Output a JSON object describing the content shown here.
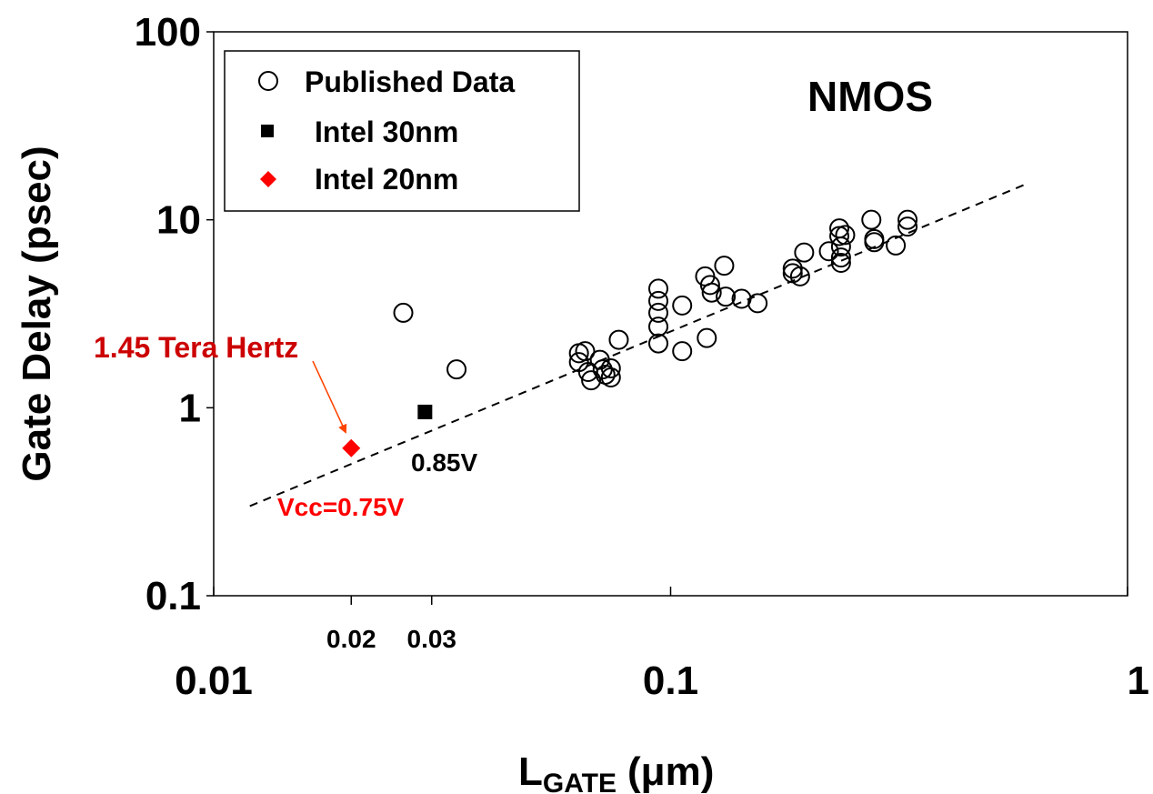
{
  "chart_data": {
    "type": "scatter",
    "title": "",
    "xlabel_main": "L",
    "xlabel_sub": "GATE",
    "xlabel_unit": "(μm)",
    "ylabel": "Gate Delay (psec)",
    "x_scale": "log",
    "y_scale": "log",
    "xlim": [
      0.01,
      1
    ],
    "ylim": [
      0.1,
      100
    ],
    "x_ticks": [
      "0.01",
      "0.1",
      "1"
    ],
    "x_minor_labels": [
      "0.02",
      "0.03"
    ],
    "y_ticks": [
      "0.1",
      "1",
      "10",
      "100"
    ],
    "grid": false,
    "legend_position": "top-left",
    "legend": [
      {
        "label": "Published Data",
        "marker": "open-circle",
        "color": "#000000"
      },
      {
        "label": "Intel 30nm",
        "marker": "filled-square",
        "color": "#000000"
      },
      {
        "label": "Intel 20nm",
        "marker": "filled-diamond",
        "color": "#ff0000"
      }
    ],
    "series": [
      {
        "name": "Published Data",
        "marker": "open-circle",
        "color": "#000000",
        "points": [
          [
            0.026,
            3.2
          ],
          [
            0.034,
            1.6
          ],
          [
            0.063,
            1.95
          ],
          [
            0.065,
            2.0
          ],
          [
            0.063,
            1.75
          ],
          [
            0.066,
            1.55
          ],
          [
            0.067,
            1.4
          ],
          [
            0.07,
            1.8
          ],
          [
            0.071,
            1.6
          ],
          [
            0.072,
            1.5
          ],
          [
            0.074,
            1.45
          ],
          [
            0.074,
            1.62
          ],
          [
            0.077,
            2.3
          ],
          [
            0.094,
            4.3
          ],
          [
            0.094,
            3.7
          ],
          [
            0.094,
            3.2
          ],
          [
            0.094,
            2.7
          ],
          [
            0.094,
            2.2
          ],
          [
            0.106,
            3.5
          ],
          [
            0.106,
            2.0
          ],
          [
            0.119,
            5.0
          ],
          [
            0.12,
            2.35
          ],
          [
            0.122,
            4.5
          ],
          [
            0.123,
            4.1
          ],
          [
            0.131,
            5.7
          ],
          [
            0.132,
            3.9
          ],
          [
            0.143,
            3.8
          ],
          [
            0.155,
            3.6
          ],
          [
            0.185,
            5.5
          ],
          [
            0.185,
            5.2
          ],
          [
            0.192,
            5.0
          ],
          [
            0.196,
            6.7
          ],
          [
            0.222,
            6.8
          ],
          [
            0.234,
            9.0
          ],
          [
            0.234,
            8.2
          ],
          [
            0.236,
            7.2
          ],
          [
            0.236,
            6.3
          ],
          [
            0.236,
            5.9
          ],
          [
            0.241,
            8.3
          ],
          [
            0.275,
            10.0
          ],
          [
            0.279,
            7.9
          ],
          [
            0.279,
            7.6
          ],
          [
            0.311,
            7.3
          ],
          [
            0.33,
            10.0
          ],
          [
            0.33,
            9.2
          ]
        ]
      },
      {
        "name": "Intel 30nm",
        "marker": "filled-square",
        "color": "#000000",
        "points": [
          [
            0.029,
            0.95
          ]
        ]
      },
      {
        "name": "Intel 20nm",
        "marker": "filled-diamond",
        "color": "#ff0000",
        "points": [
          [
            0.02,
            0.61
          ]
        ]
      }
    ],
    "trend_line": {
      "style": "dashed",
      "from": [
        0.012,
        0.3
      ],
      "to": [
        0.6,
        15.5
      ]
    },
    "annotations": [
      {
        "text": "NMOS",
        "color": "#000000"
      },
      {
        "text": "1.45 Tera Hertz",
        "color": "#cc0000"
      },
      {
        "text": "0.85V",
        "color": "#000000"
      },
      {
        "text": "Vcc=0.75V",
        "color": "#ff0000"
      }
    ]
  }
}
